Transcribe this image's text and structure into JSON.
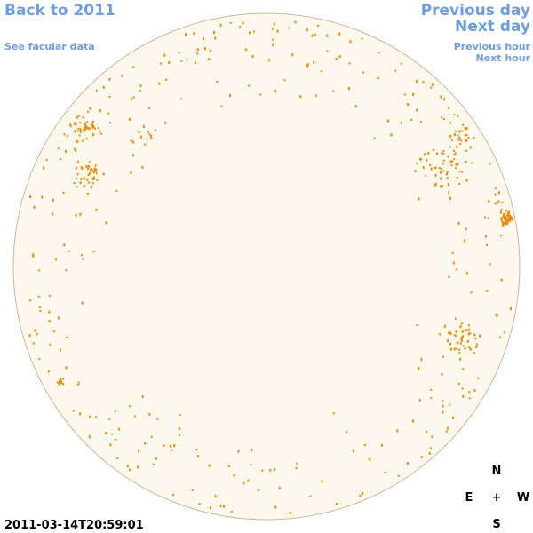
{
  "navigation": {
    "back_year": "Back to 2011",
    "facular_data": "See facular data",
    "previous_day": "Previous day",
    "next_day": "Next day",
    "previous_hour": "Previous hour",
    "next_hour": "Next hour"
  },
  "timestamp": "2011-03-14T20:59:01",
  "compass": {
    "north": "N",
    "center": "+",
    "east": "E",
    "west": "W",
    "south": "S"
  }
}
